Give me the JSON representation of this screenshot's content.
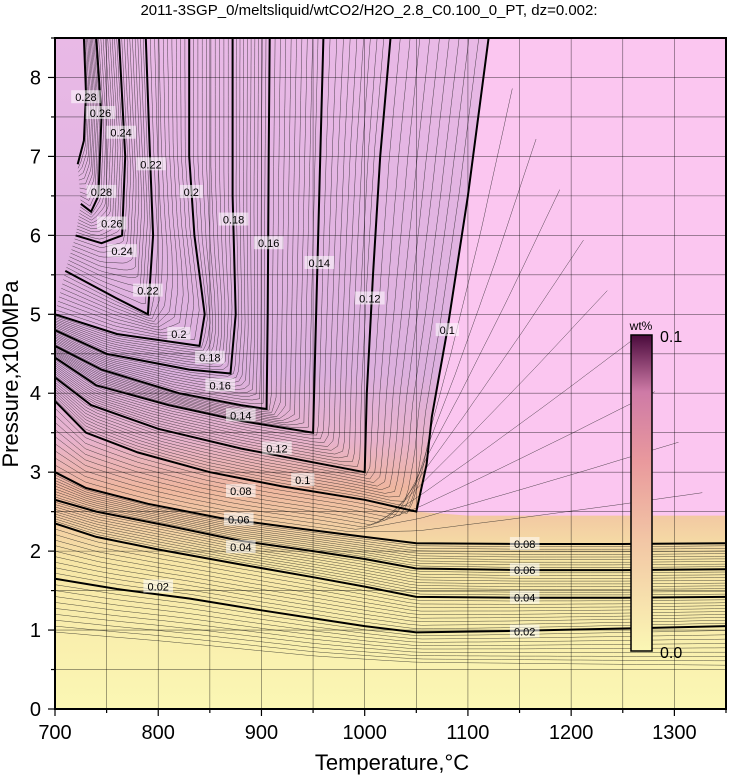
{
  "chart_data": {
    "type": "heatmap",
    "title": "2011-3SGP_0/meltsliquid/wtCO2/H2O_2.8_C0.100_0_PT, dz=0.002:",
    "xlabel": "Temperature,°C",
    "ylabel": "Pressure,x100MPa",
    "xlim": [
      700,
      1350
    ],
    "ylim": [
      0,
      8.5
    ],
    "x_ticks": [
      700,
      800,
      900,
      1000,
      1100,
      1200,
      1300
    ],
    "y_ticks": [
      0,
      1,
      2,
      3,
      4,
      5,
      6,
      7,
      8
    ],
    "grid": true,
    "contour_interval": 0.002,
    "colorscale": {
      "unit": "wt%",
      "min": 0.0,
      "max": 0.1,
      "min_label": "0.0",
      "max_label": "0.1",
      "colors": [
        "#fbf7b4",
        "#f2c6a5",
        "#e9999d",
        "#ce7aa6",
        "#4a0a3c"
      ],
      "saturated_color": "#fbc6f0"
    },
    "contour_levels": [
      {
        "level": 0.02,
        "label": "0.02",
        "points": [
          [
            700,
            1.65
          ],
          [
            760,
            1.52
          ],
          [
            830,
            1.4
          ],
          [
            900,
            1.25
          ],
          [
            950,
            1.15
          ],
          [
            1000,
            1.05
          ],
          [
            1050,
            0.97
          ],
          [
            1150,
            0.99
          ],
          [
            1250,
            1.02
          ],
          [
            1350,
            1.05
          ]
        ]
      },
      {
        "level": 0.04,
        "label": "0.04",
        "points": [
          [
            700,
            2.35
          ],
          [
            740,
            2.18
          ],
          [
            800,
            2.02
          ],
          [
            880,
            1.83
          ],
          [
            950,
            1.67
          ],
          [
            1000,
            1.55
          ],
          [
            1050,
            1.42
          ],
          [
            1150,
            1.41
          ],
          [
            1250,
            1.41
          ],
          [
            1350,
            1.42
          ]
        ]
      },
      {
        "level": 0.06,
        "label": "0.06",
        "points": [
          [
            700,
            2.65
          ],
          [
            740,
            2.5
          ],
          [
            810,
            2.32
          ],
          [
            880,
            2.13
          ],
          [
            950,
            2.0
          ],
          [
            1000,
            1.9
          ],
          [
            1050,
            1.78
          ],
          [
            1150,
            1.76
          ],
          [
            1250,
            1.76
          ],
          [
            1350,
            1.77
          ]
        ]
      },
      {
        "level": 0.08,
        "label": "0.08",
        "points": [
          [
            700,
            3.0
          ],
          [
            730,
            2.8
          ],
          [
            790,
            2.6
          ],
          [
            860,
            2.42
          ],
          [
            940,
            2.28
          ],
          [
            1000,
            2.18
          ],
          [
            1050,
            2.1
          ],
          [
            1150,
            2.09
          ],
          [
            1250,
            2.09
          ],
          [
            1350,
            2.1
          ]
        ]
      },
      {
        "level": 0.1,
        "label": "0.1",
        "points": [
          [
            700,
            3.9
          ],
          [
            730,
            3.5
          ],
          [
            780,
            3.25
          ],
          [
            850,
            3.0
          ],
          [
            920,
            2.82
          ],
          [
            1000,
            2.65
          ],
          [
            1050,
            2.5
          ],
          [
            1060,
            3.1
          ],
          [
            1065,
            3.7
          ],
          [
            1080,
            4.8
          ],
          [
            1100,
            6.5
          ],
          [
            1120,
            8.5
          ]
        ]
      },
      {
        "level": 0.12,
        "label": "0.12",
        "points": [
          [
            700,
            4.2
          ],
          [
            735,
            3.85
          ],
          [
            800,
            3.55
          ],
          [
            880,
            3.3
          ],
          [
            960,
            3.1
          ],
          [
            1000,
            3.0
          ],
          [
            1002,
            4.0
          ],
          [
            1008,
            5.5
          ],
          [
            1015,
            7.0
          ],
          [
            1025,
            8.5
          ]
        ]
      },
      {
        "level": 0.14,
        "label": "0.14",
        "points": [
          [
            700,
            4.45
          ],
          [
            740,
            4.1
          ],
          [
            810,
            3.85
          ],
          [
            880,
            3.65
          ],
          [
            950,
            3.5
          ],
          [
            952,
            4.5
          ],
          [
            955,
            6.0
          ],
          [
            958,
            7.5
          ],
          [
            960,
            8.5
          ]
        ]
      },
      {
        "level": 0.16,
        "label": "0.16",
        "points": [
          [
            700,
            4.6
          ],
          [
            745,
            4.3
          ],
          [
            820,
            4.0
          ],
          [
            880,
            3.85
          ],
          [
            905,
            3.8
          ],
          [
            906,
            5.0
          ],
          [
            907,
            7.0
          ],
          [
            908,
            8.5
          ]
        ]
      },
      {
        "level": 0.18,
        "label": "0.18",
        "points": [
          [
            700,
            4.8
          ],
          [
            750,
            4.5
          ],
          [
            830,
            4.3
          ],
          [
            870,
            4.25
          ],
          [
            875,
            5.0
          ],
          [
            872,
            6.5
          ],
          [
            872,
            8.5
          ]
        ]
      },
      {
        "level": 0.2,
        "label": "0.2",
        "points": [
          [
            700,
            5.0
          ],
          [
            760,
            4.75
          ],
          [
            840,
            4.6
          ],
          [
            845,
            5.0
          ],
          [
            835,
            6.0
          ],
          [
            830,
            7.0
          ],
          [
            830,
            8.5
          ]
        ]
      },
      {
        "level": 0.22,
        "label": "0.22",
        "points": [
          [
            710,
            5.55
          ],
          [
            760,
            5.2
          ],
          [
            790,
            5.0
          ],
          [
            795,
            6.0
          ],
          [
            792,
            7.0
          ],
          [
            788,
            8.5
          ]
        ]
      },
      {
        "level": 0.24,
        "label": "0.24",
        "points": [
          [
            720,
            6.0
          ],
          [
            745,
            5.9
          ],
          [
            765,
            6.0
          ],
          [
            768,
            7.0
          ],
          [
            762,
            8.5
          ]
        ]
      },
      {
        "level": 0.26,
        "label": "0.26",
        "points": [
          [
            725,
            6.4
          ],
          [
            735,
            6.3
          ],
          [
            742,
            6.5
          ],
          [
            745,
            7.5
          ],
          [
            740,
            8.5
          ]
        ]
      },
      {
        "level": 0.28,
        "label": "0.28",
        "points": [
          [
            722,
            6.9
          ],
          [
            728,
            7.2
          ],
          [
            730,
            7.8
          ],
          [
            728,
            8.5
          ]
        ]
      }
    ],
    "contour_labels": [
      {
        "text": "0.02",
        "x": 800,
        "y": 1.55
      },
      {
        "text": "0.02",
        "x": 1155,
        "y": 0.98
      },
      {
        "text": "0.04",
        "x": 880,
        "y": 2.05
      },
      {
        "text": "0.04",
        "x": 1155,
        "y": 1.41
      },
      {
        "text": "0.06",
        "x": 878,
        "y": 2.4
      },
      {
        "text": "0.06",
        "x": 1155,
        "y": 1.76
      },
      {
        "text": "0.08",
        "x": 880,
        "y": 2.76
      },
      {
        "text": "0.08",
        "x": 1155,
        "y": 2.09
      },
      {
        "text": "0.1",
        "x": 940,
        "y": 2.9
      },
      {
        "text": "0.1",
        "x": 1080,
        "y": 4.8
      },
      {
        "text": "0.12",
        "x": 915,
        "y": 3.3
      },
      {
        "text": "0.12",
        "x": 1005,
        "y": 5.2
      },
      {
        "text": "0.14",
        "x": 880,
        "y": 3.72
      },
      {
        "text": "0.14",
        "x": 956,
        "y": 5.65
      },
      {
        "text": "0.16",
        "x": 860,
        "y": 4.1
      },
      {
        "text": "0.16",
        "x": 907,
        "y": 5.9
      },
      {
        "text": "0.18",
        "x": 850,
        "y": 4.45
      },
      {
        "text": "0.18",
        "x": 873,
        "y": 6.2
      },
      {
        "text": "0.2",
        "x": 820,
        "y": 4.75
      },
      {
        "text": "0.2",
        "x": 832,
        "y": 6.55
      },
      {
        "text": "0.22",
        "x": 790,
        "y": 5.3
      },
      {
        "text": "0.22",
        "x": 793,
        "y": 6.9
      },
      {
        "text": "0.24",
        "x": 765,
        "y": 5.8
      },
      {
        "text": "0.24",
        "x": 764,
        "y": 7.3
      },
      {
        "text": "0.26",
        "x": 755,
        "y": 6.15
      },
      {
        "text": "0.26",
        "x": 744,
        "y": 7.55
      },
      {
        "text": "0.28",
        "x": 745,
        "y": 6.55
      },
      {
        "text": "0.28",
        "x": 730,
        "y": 7.75
      }
    ],
    "colorbar": {
      "position": "inside-right"
    }
  }
}
